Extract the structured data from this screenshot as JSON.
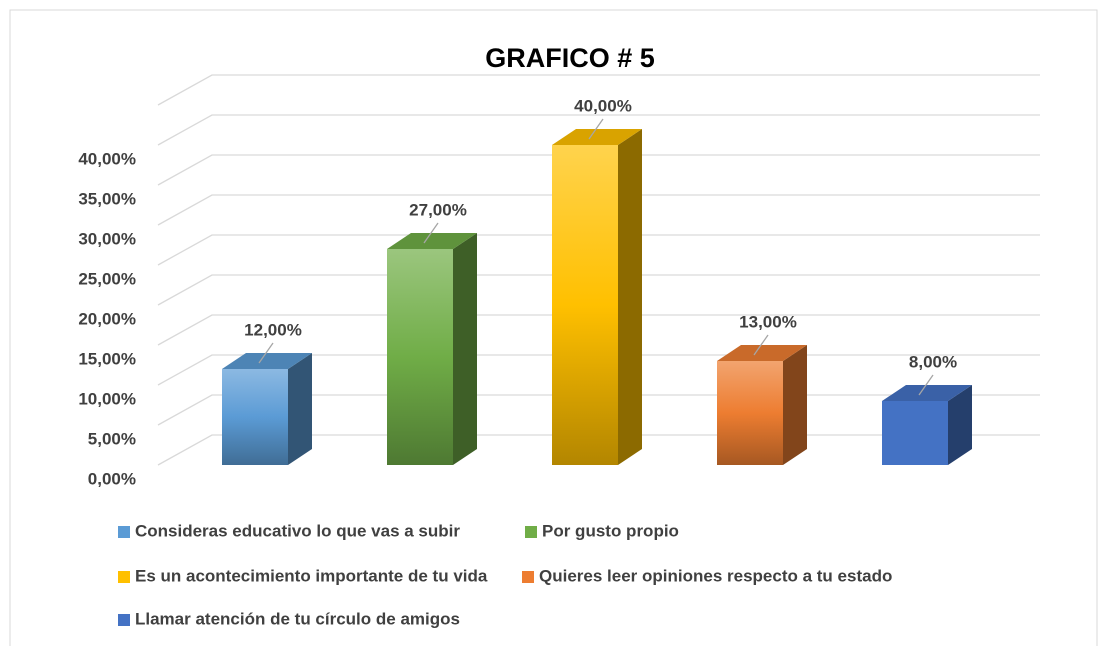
{
  "chart_data": {
    "type": "bar3d",
    "title": "GRAFICO # 5",
    "categories": [
      "Consideras educativo lo que vas a subir",
      "Por gusto propio",
      "Es un acontecimiento importante de tu vida",
      "Quieres leer opiniones respecto a tu estado",
      "Llamar atención de tu círculo de amigos"
    ],
    "values": [
      12,
      27,
      40,
      13,
      8
    ],
    "value_labels": [
      "12,00%",
      "27,00%",
      "40,00%",
      "13,00%",
      "8,00%"
    ],
    "colors": [
      "#5b9bd5",
      "#70ad47",
      "#ffc000",
      "#ed7d31",
      "#4472c4"
    ],
    "ylim": [
      0,
      45
    ],
    "yticks": [
      {
        "value": 0,
        "label": "0,00%"
      },
      {
        "value": 5,
        "label": "5,00%"
      },
      {
        "value": 10,
        "label": "10,00%"
      },
      {
        "value": 15,
        "label": "15,00%"
      },
      {
        "value": 20,
        "label": "20,00%"
      },
      {
        "value": 25,
        "label": "25,00%"
      },
      {
        "value": 30,
        "label": "30,00%"
      },
      {
        "value": 35,
        "label": "35,00%"
      },
      {
        "value": 40,
        "label": "40,00%"
      }
    ],
    "grid": true,
    "legend": "bottom"
  }
}
